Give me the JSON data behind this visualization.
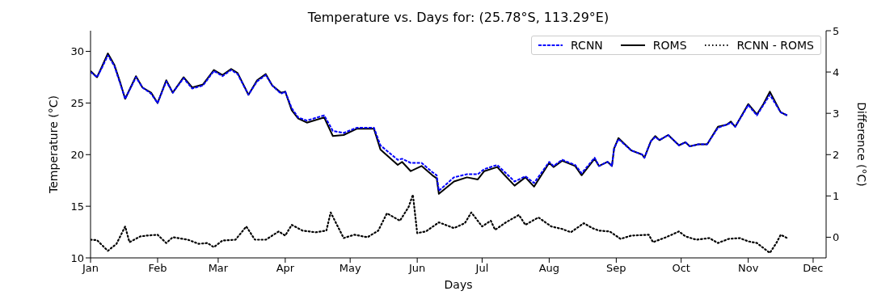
{
  "chart_data": {
    "type": "line",
    "title": "Temperature vs. Days for: (25.78°S, 113.29°E)",
    "xlabel": "Days",
    "ylabel": "Temperature (°C)",
    "y2label": "Difference (°C)",
    "x": [
      "--01-01",
      "--01-04",
      "--01-06",
      "--01-09",
      "--01-12",
      "--01-15",
      "--01-17",
      "--01-22",
      "--01-25",
      "--01-29",
      "--02-01",
      "--02-05",
      "--02-08",
      "--02-13",
      "--02-17",
      "--02-22",
      "--02-27",
      "--03-03",
      "--03-07",
      "--03-10",
      "--03-15",
      "--03-19",
      "--03-23",
      "--03-26",
      "--03-30",
      "--04-01",
      "--04-04",
      "--04-07",
      "--04-11",
      "--04-19",
      "--04-23",
      "--04-28",
      "--05-04",
      "--05-12",
      "--05-15",
      "--05-23",
      "--05-25",
      "--05-29",
      "--06-03",
      "--06-08",
      "--06-10",
      "--06-11",
      "--06-18",
      "--06-24",
      "--06-29",
      "--07-02",
      "--07-08",
      "--07-11",
      "--07-16",
      "--07-21",
      "--07-25",
      "--08-01",
      "--08-03",
      "--08-07",
      "--08-13",
      "--08-16",
      "--08-22",
      "--08-24",
      "--08-28",
      "--08-30",
      "--08-31",
      "--09-02",
      "--09-08",
      "--09-13",
      "--09-14",
      "--09-17",
      "--09-19",
      "--09-21",
      "--09-25",
      "--09-30",
      "--10-03",
      "--10-05",
      "--10-09",
      "--10-13",
      "--10-18",
      "--10-22",
      "--10-24",
      "--10-26",
      "--11-01",
      "--11-05",
      "--11-08",
      "--11-11",
      "--11-16",
      "--11-19"
    ],
    "series": [
      {
        "name": "RCNN",
        "color": "#0000ff",
        "line_style": "dashed",
        "values": [
          28.0,
          27.5,
          28.3,
          29.6,
          28.6,
          26.7,
          25.4,
          27.5,
          26.5,
          25.9,
          25.0,
          27.1,
          26.0,
          27.4,
          26.4,
          26.7,
          28.1,
          27.6,
          28.2,
          27.8,
          25.8,
          27.1,
          27.7,
          26.7,
          25.9,
          26.1,
          24.5,
          23.6,
          23.3,
          23.8,
          22.3,
          22.1,
          22.6,
          22.6,
          20.9,
          19.5,
          19.6,
          19.2,
          19.2,
          18.3,
          18.0,
          16.5,
          17.8,
          18.1,
          18.1,
          18.6,
          19.0,
          18.4,
          17.4,
          17.9,
          17.25,
          19.3,
          18.9,
          19.5,
          19.0,
          18.2,
          19.7,
          18.9,
          19.3,
          18.9,
          20.6,
          21.5,
          20.4,
          20.0,
          19.7,
          21.3,
          21.7,
          21.4,
          21.9,
          20.9,
          21.2,
          20.8,
          21.0,
          21.0,
          22.6,
          22.9,
          23.1,
          22.7,
          24.8,
          23.8,
          24.8,
          25.8,
          24.1,
          23.8
        ]
      },
      {
        "name": "ROMS",
        "color": "#000000",
        "line_style": "solid",
        "values": [
          28.1,
          27.5,
          28.4,
          29.8,
          28.7,
          26.8,
          25.4,
          27.6,
          26.5,
          26.0,
          25.0,
          27.2,
          26.0,
          27.5,
          26.5,
          26.8,
          28.2,
          27.7,
          28.3,
          27.9,
          25.8,
          27.2,
          27.8,
          26.7,
          26.0,
          26.1,
          24.3,
          23.5,
          23.1,
          23.6,
          21.8,
          21.9,
          22.5,
          22.5,
          20.5,
          19.0,
          19.3,
          18.4,
          18.9,
          18.0,
          17.7,
          16.2,
          17.4,
          17.8,
          17.6,
          18.4,
          18.8,
          18.1,
          17.0,
          17.8,
          16.9,
          19.2,
          18.8,
          19.4,
          18.9,
          18.0,
          19.6,
          18.9,
          19.3,
          18.9,
          20.6,
          21.6,
          20.4,
          20.0,
          19.7,
          21.3,
          21.8,
          21.4,
          21.9,
          20.9,
          21.2,
          20.8,
          21.0,
          21.0,
          22.7,
          22.9,
          23.2,
          22.7,
          24.9,
          23.9,
          24.9,
          26.1,
          24.1,
          23.8
        ]
      },
      {
        "name": "RCNN - ROMS",
        "color": "#000000",
        "line_style": "dotted",
        "axis": "y2",
        "x": [
          "--01-01",
          "--01-04",
          "--01-09",
          "--01-13",
          "--01-17",
          "--01-19",
          "--01-24",
          "--01-27",
          "--02-01",
          "--02-05",
          "--02-08",
          "--02-15",
          "--02-20",
          "--02-24",
          "--02-27",
          "--03-03",
          "--03-09",
          "--03-14",
          "--03-18",
          "--03-23",
          "--03-29",
          "--04-01",
          "--04-04",
          "--04-09",
          "--04-15",
          "--04-20",
          "--04-22",
          "--04-28",
          "--05-03",
          "--05-09",
          "--05-14",
          "--05-18",
          "--05-24",
          "--05-28",
          "--05-30",
          "--06-01",
          "--06-05",
          "--06-11",
          "--06-18",
          "--06-23",
          "--06-26",
          "--07-01",
          "--07-05",
          "--07-07",
          "--07-12",
          "--07-18",
          "--07-21",
          "--07-27",
          "--08-02",
          "--08-07",
          "--08-11",
          "--08-17",
          "--08-21",
          "--08-24",
          "--08-29",
          "--09-03",
          "--09-08",
          "--09-16",
          "--09-18",
          "--09-24",
          "--09-30",
          "--10-03",
          "--10-08",
          "--10-14",
          "--10-18",
          "--10-23",
          "--10-28",
          "--11-01",
          "--11-05",
          "--11-09",
          "--11-11",
          "--11-14",
          "--11-16",
          "--11-19"
        ],
        "values": [
          -0.06,
          -0.07,
          -0.33,
          -0.16,
          0.26,
          -0.12,
          0.02,
          0.04,
          0.06,
          -0.14,
          0.0,
          -0.06,
          -0.16,
          -0.14,
          -0.24,
          -0.08,
          -0.06,
          0.26,
          -0.06,
          -0.06,
          0.14,
          0.04,
          0.3,
          0.16,
          0.12,
          0.16,
          0.6,
          -0.02,
          0.06,
          0.0,
          0.16,
          0.58,
          0.4,
          0.73,
          1.03,
          0.1,
          0.14,
          0.36,
          0.22,
          0.34,
          0.6,
          0.26,
          0.4,
          0.18,
          0.36,
          0.54,
          0.3,
          0.48,
          0.26,
          0.2,
          0.12,
          0.34,
          0.22,
          0.16,
          0.14,
          -0.04,
          0.04,
          0.06,
          -0.12,
          0.0,
          0.14,
          0.02,
          -0.06,
          -0.02,
          -0.14,
          -0.04,
          -0.02,
          -0.1,
          -0.14,
          -0.3,
          -0.38,
          -0.14,
          0.06,
          -0.02
        ]
      }
    ],
    "xlim": [
      "--01-01",
      "--12-07"
    ],
    "xticks": [
      {
        "value": "--01-01",
        "label": "Jan"
      },
      {
        "value": "--02-01",
        "label": "Feb"
      },
      {
        "value": "--03-01",
        "label": "Mar"
      },
      {
        "value": "--04-01",
        "label": "Apr"
      },
      {
        "value": "--05-01",
        "label": "May"
      },
      {
        "value": "--06-01",
        "label": "Jun"
      },
      {
        "value": "--07-01",
        "label": "Jul"
      },
      {
        "value": "--08-01",
        "label": "Aug"
      },
      {
        "value": "--09-01",
        "label": "Sep"
      },
      {
        "value": "--10-01",
        "label": "Oct"
      },
      {
        "value": "--11-01",
        "label": "Nov"
      },
      {
        "value": "--12-01",
        "label": "Dec"
      }
    ],
    "ylim": [
      10,
      32
    ],
    "yticks": [
      10,
      15,
      20,
      25,
      30
    ],
    "y2lim": [
      -0.5,
      5
    ],
    "y2ticks": [
      0,
      1,
      2,
      3,
      4,
      5
    ],
    "grid": false,
    "legend": "top right",
    "marker": "none"
  }
}
